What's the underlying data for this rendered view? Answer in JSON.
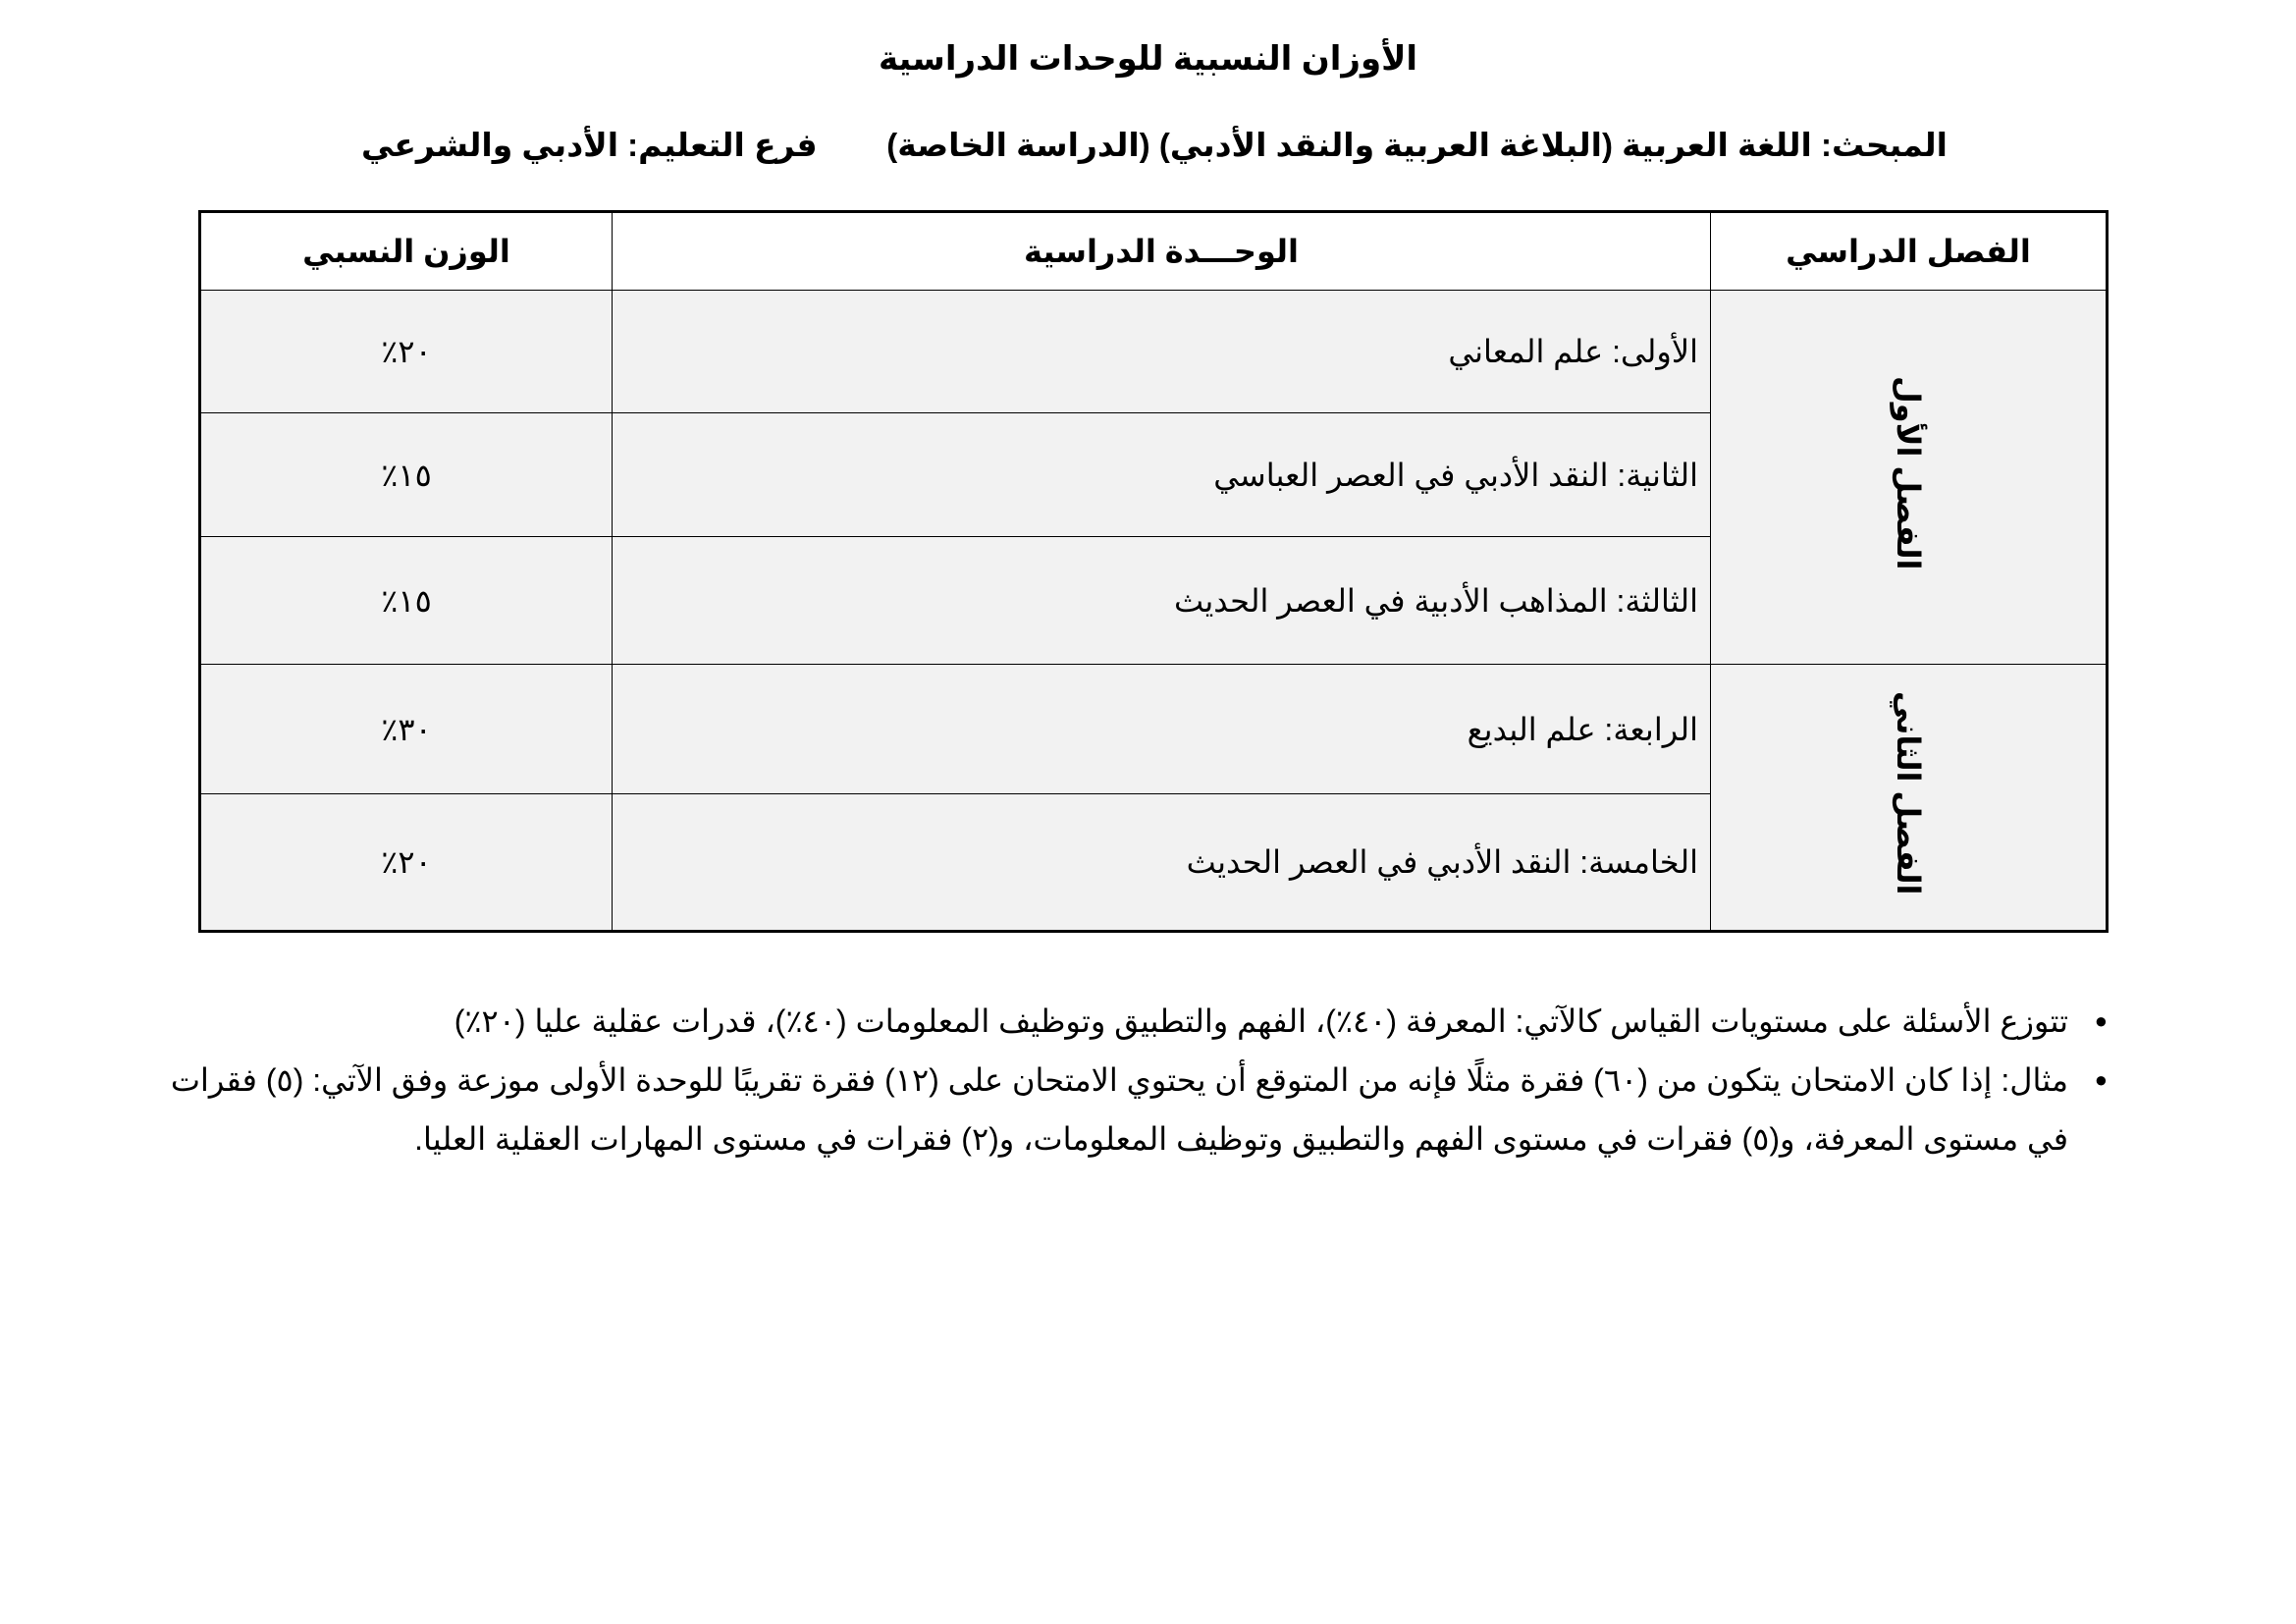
{
  "title": "الأوزان النسبية للوحدات الدراسية",
  "subject": "المبحث: اللغة العربية (البلاغة العربية والنقد الأدبي) (الدراسة الخاصة)",
  "branch": "فرع التعليم: الأدبي والشرعي",
  "table": {
    "headers": [
      "الفصل الدراسي",
      "الوحـــدة الدراسية",
      "الوزن النسبي"
    ],
    "semesters": [
      "الفصل الأول",
      "الفصل الثاني"
    ],
    "rows": [
      {
        "unit": "الأولى: علم المعاني",
        "weight": "٢٠٪"
      },
      {
        "unit": "الثانية: النقد الأدبي في العصر العباسي",
        "weight": "١٥٪"
      },
      {
        "unit": "الثالثة: المذاهب الأدبية في العصر الحديث",
        "weight": "١٥٪"
      },
      {
        "unit": "الرابعة: علم البديع",
        "weight": "٣٠٪"
      },
      {
        "unit": "الخامسة: النقد الأدبي في العصر الحديث",
        "weight": "٢٠٪"
      }
    ]
  },
  "notes": [
    "تتوزع الأسئلة على مستويات القياس كالآتي: المعرفة (٤٠٪)، الفهم والتطبيق وتوظيف المعلومات (٤٠٪)، قدرات عقلية عليا (٢٠٪)",
    "مثال: إذا كان الامتحان يتكون من (٦٠) فقرة مثلًا فإنه من المتوقع أن يحتوي الامتحان على (١٢) فقرة تقريبًا للوحدة الأولى موزعة وفق الآتي: (٥) فقرات في مستوى المعرفة، و(٥) فقرات في مستوى الفهم والتطبيق وتوظيف المعلومات، و(٢) فقرات في مستوى المهارات العقلية العليا."
  ]
}
